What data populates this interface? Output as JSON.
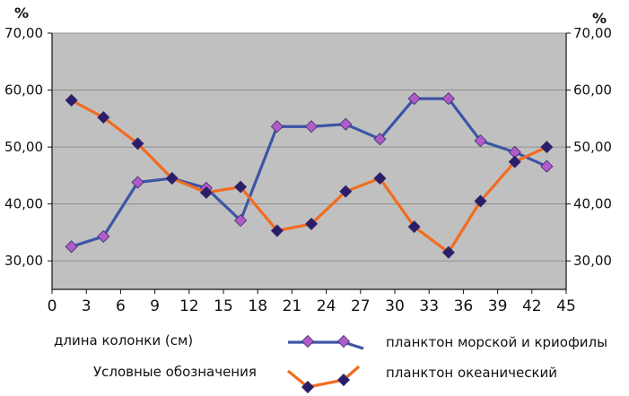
{
  "chart_data": {
    "type": "line",
    "y_unit_left": "%",
    "y_unit_right": "%",
    "xlabel": "длина колонки (см)",
    "legend_title": "Условные обозначения",
    "xlim": [
      0,
      45
    ],
    "ylim": [
      25,
      70
    ],
    "x_ticks": [
      "0",
      "3",
      "6",
      "9",
      "12",
      "15",
      "18",
      "21",
      "24",
      "27",
      "30",
      "33",
      "36",
      "39",
      "42",
      "45"
    ],
    "y_ticks": [
      {
        "value": 70,
        "label": "70,00"
      },
      {
        "value": 60,
        "label": "60,00"
      },
      {
        "value": 50,
        "label": "50,00"
      },
      {
        "value": 40,
        "label": "40,00"
      },
      {
        "value": 30,
        "label": "30,00"
      }
    ],
    "background_color": "#c0c0c0",
    "series": [
      {
        "name": "планктон морской и криофилы",
        "color": "#3d55a6",
        "marker_color": "#b05cc8",
        "x": [
          1.7,
          4.5,
          7.5,
          10.5,
          13.5,
          16.5,
          19.7,
          22.7,
          25.7,
          28.7,
          31.7,
          34.7,
          37.5,
          40.5,
          43.3
        ],
        "y": [
          32.5,
          34.3,
          43.8,
          44.5,
          42.8,
          37.1,
          53.6,
          53.6,
          54.0,
          51.4,
          58.5,
          58.5,
          51.1,
          49.1,
          46.6
        ]
      },
      {
        "name": "планктон океанический",
        "color": "#f26c1f",
        "marker_color": "#2a1e6b",
        "x": [
          1.7,
          4.5,
          7.5,
          10.5,
          13.5,
          16.5,
          19.7,
          22.7,
          25.7,
          28.7,
          31.7,
          34.7,
          37.5,
          40.5,
          43.3
        ],
        "y": [
          58.2,
          55.2,
          50.6,
          44.5,
          42.0,
          43.0,
          35.3,
          36.5,
          42.2,
          44.5,
          36.0,
          31.5,
          40.5,
          47.4,
          50.0
        ]
      }
    ]
  }
}
